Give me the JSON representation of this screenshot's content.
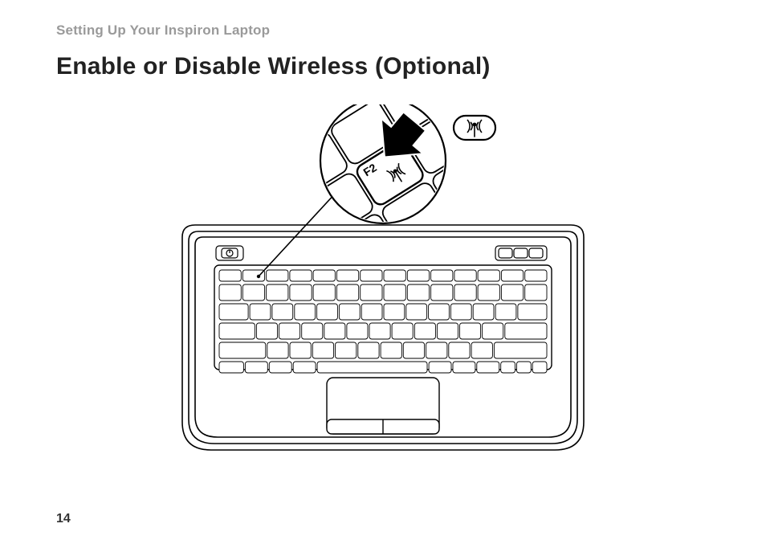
{
  "section_label": "Setting Up Your Inspiron Laptop",
  "heading": "Enable or Disable Wireless (Optional)",
  "page_number": "14",
  "figure": {
    "callout_key_label": "F2",
    "stroke": "#000000",
    "stroke_width_main": 1.6,
    "stroke_width_keys": 1.0,
    "fill_bg": "#ffffff"
  }
}
